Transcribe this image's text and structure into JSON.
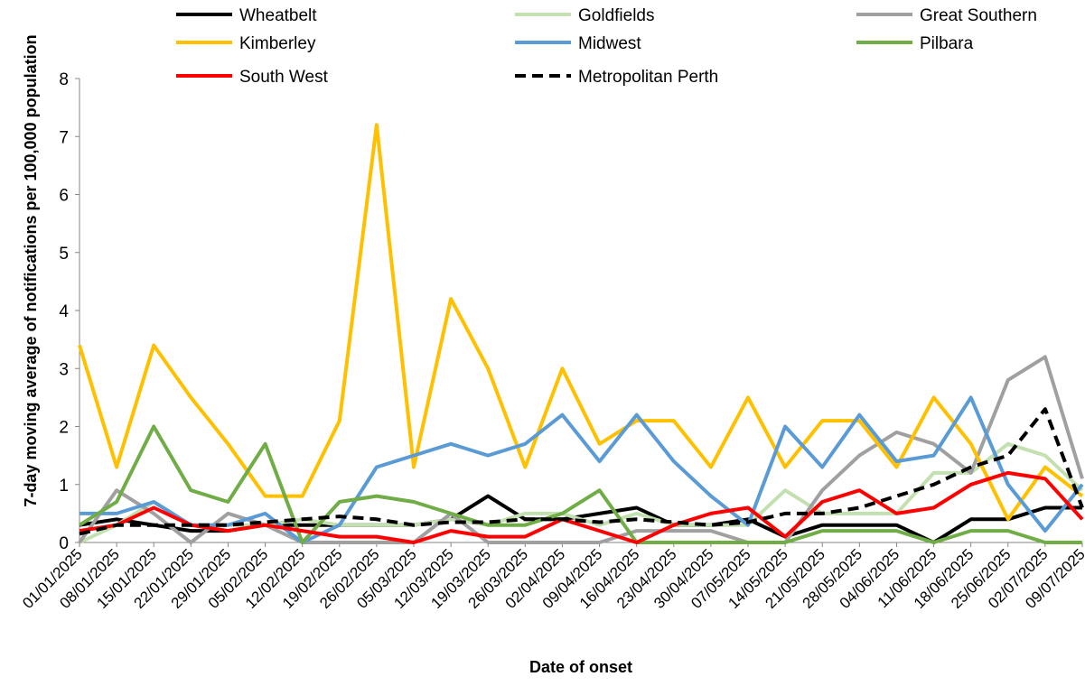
{
  "chart_data": {
    "type": "line",
    "x_label": "Date of onset",
    "y_label": "7-day moving average of notifications per 100,000 population",
    "x": [
      "01/01/2025",
      "08/01/2025",
      "15/01/2025",
      "22/01/2025",
      "29/01/2025",
      "05/02/2025",
      "12/02/2025",
      "19/02/2025",
      "26/02/2025",
      "05/03/2025",
      "12/03/2025",
      "19/03/2025",
      "26/03/2025",
      "02/04/2025",
      "09/04/2025",
      "16/04/2025",
      "23/04/2025",
      "30/04/2025",
      "07/05/2025",
      "14/05/2025",
      "21/05/2025",
      "28/05/2025",
      "04/06/2025",
      "11/06/2025",
      "18/06/2025",
      "25/06/2025",
      "02/07/2025",
      "09/07/2025"
    ],
    "ylim": [
      0,
      8
    ],
    "yticks": [
      0,
      1,
      2,
      3,
      4,
      5,
      6,
      7,
      8
    ],
    "grid": false,
    "series": [
      {
        "name": "Wheatbelt",
        "color": "#000000",
        "dashed": false,
        "values": [
          0.3,
          0.4,
          0.3,
          0.2,
          0.2,
          0.3,
          0.3,
          0.3,
          0.3,
          0.3,
          0.4,
          0.8,
          0.4,
          0.4,
          0.5,
          0.6,
          0.3,
          0.3,
          0.4,
          0.1,
          0.3,
          0.3,
          0.3,
          0,
          0.4,
          0.4,
          0.6,
          0.6
        ]
      },
      {
        "name": "Goldfields",
        "color": "#c3e0b0",
        "dashed": false,
        "values": [
          0,
          0.3,
          0.7,
          0.3,
          0.3,
          0.3,
          0.4,
          0.3,
          0.3,
          0.3,
          0.4,
          0.3,
          0.5,
          0.5,
          0.3,
          0.5,
          0.3,
          0.3,
          0.3,
          0.9,
          0.5,
          0.5,
          0.5,
          1.2,
          1.2,
          1.7,
          1.5,
          0.9
        ]
      },
      {
        "name": "Great Southern",
        "color": "#a0a0a0",
        "dashed": false,
        "values": [
          0,
          0.9,
          0.5,
          0,
          0.5,
          0.3,
          0,
          0,
          0,
          0,
          0.5,
          0,
          0,
          0,
          0,
          0.2,
          0.2,
          0.2,
          0,
          0,
          0.9,
          1.5,
          1.9,
          1.7,
          1.2,
          2.8,
          3.2,
          1.1
        ]
      },
      {
        "name": "Kimberley",
        "color": "#ffc000",
        "dashed": false,
        "values": [
          3.4,
          1.3,
          3.4,
          2.5,
          1.7,
          0.8,
          0.8,
          2.1,
          7.2,
          1.3,
          4.2,
          3.0,
          1.3,
          3.0,
          1.7,
          2.1,
          2.1,
          1.3,
          2.5,
          1.3,
          2.1,
          2.1,
          1.3,
          2.5,
          1.7,
          0.4,
          1.3,
          0.8
        ]
      },
      {
        "name": "Midwest",
        "color": "#5b9bd5",
        "dashed": false,
        "values": [
          0.5,
          0.5,
          0.7,
          0.3,
          0.3,
          0.5,
          0,
          0.3,
          1.3,
          1.5,
          1.7,
          1.5,
          1.7,
          2.2,
          1.4,
          2.2,
          1.4,
          0.8,
          0.3,
          2.0,
          1.3,
          2.2,
          1.4,
          1.5,
          2.5,
          1.0,
          0.2,
          1.0
        ]
      },
      {
        "name": "Pilbara",
        "color": "#70ad47",
        "dashed": false,
        "values": [
          0.3,
          0.7,
          2.0,
          0.9,
          0.7,
          1.7,
          0,
          0.7,
          0.8,
          0.7,
          0.5,
          0.3,
          0.3,
          0.5,
          0.9,
          0,
          0,
          0,
          0,
          0,
          0.2,
          0.2,
          0.2,
          0,
          0.2,
          0.2,
          0,
          0
        ]
      },
      {
        "name": "South West",
        "color": "#ff0000",
        "dashed": false,
        "values": [
          0.2,
          0.3,
          0.6,
          0.3,
          0.2,
          0.3,
          0.2,
          0.1,
          0.1,
          0,
          0.2,
          0.1,
          0.1,
          0.4,
          0.2,
          0,
          0.3,
          0.5,
          0.6,
          0.1,
          0.7,
          0.9,
          0.5,
          0.6,
          1.0,
          1.2,
          1.1,
          0.4
        ]
      },
      {
        "name": "Metropolitan Perth",
        "color": "#000000",
        "dashed": true,
        "values": [
          0.15,
          0.3,
          0.3,
          0.3,
          0.3,
          0.35,
          0.4,
          0.45,
          0.4,
          0.3,
          0.35,
          0.35,
          0.4,
          0.4,
          0.35,
          0.4,
          0.35,
          0.3,
          0.35,
          0.5,
          0.5,
          0.6,
          0.8,
          1.0,
          1.3,
          1.5,
          2.3,
          0.6
        ]
      }
    ]
  }
}
